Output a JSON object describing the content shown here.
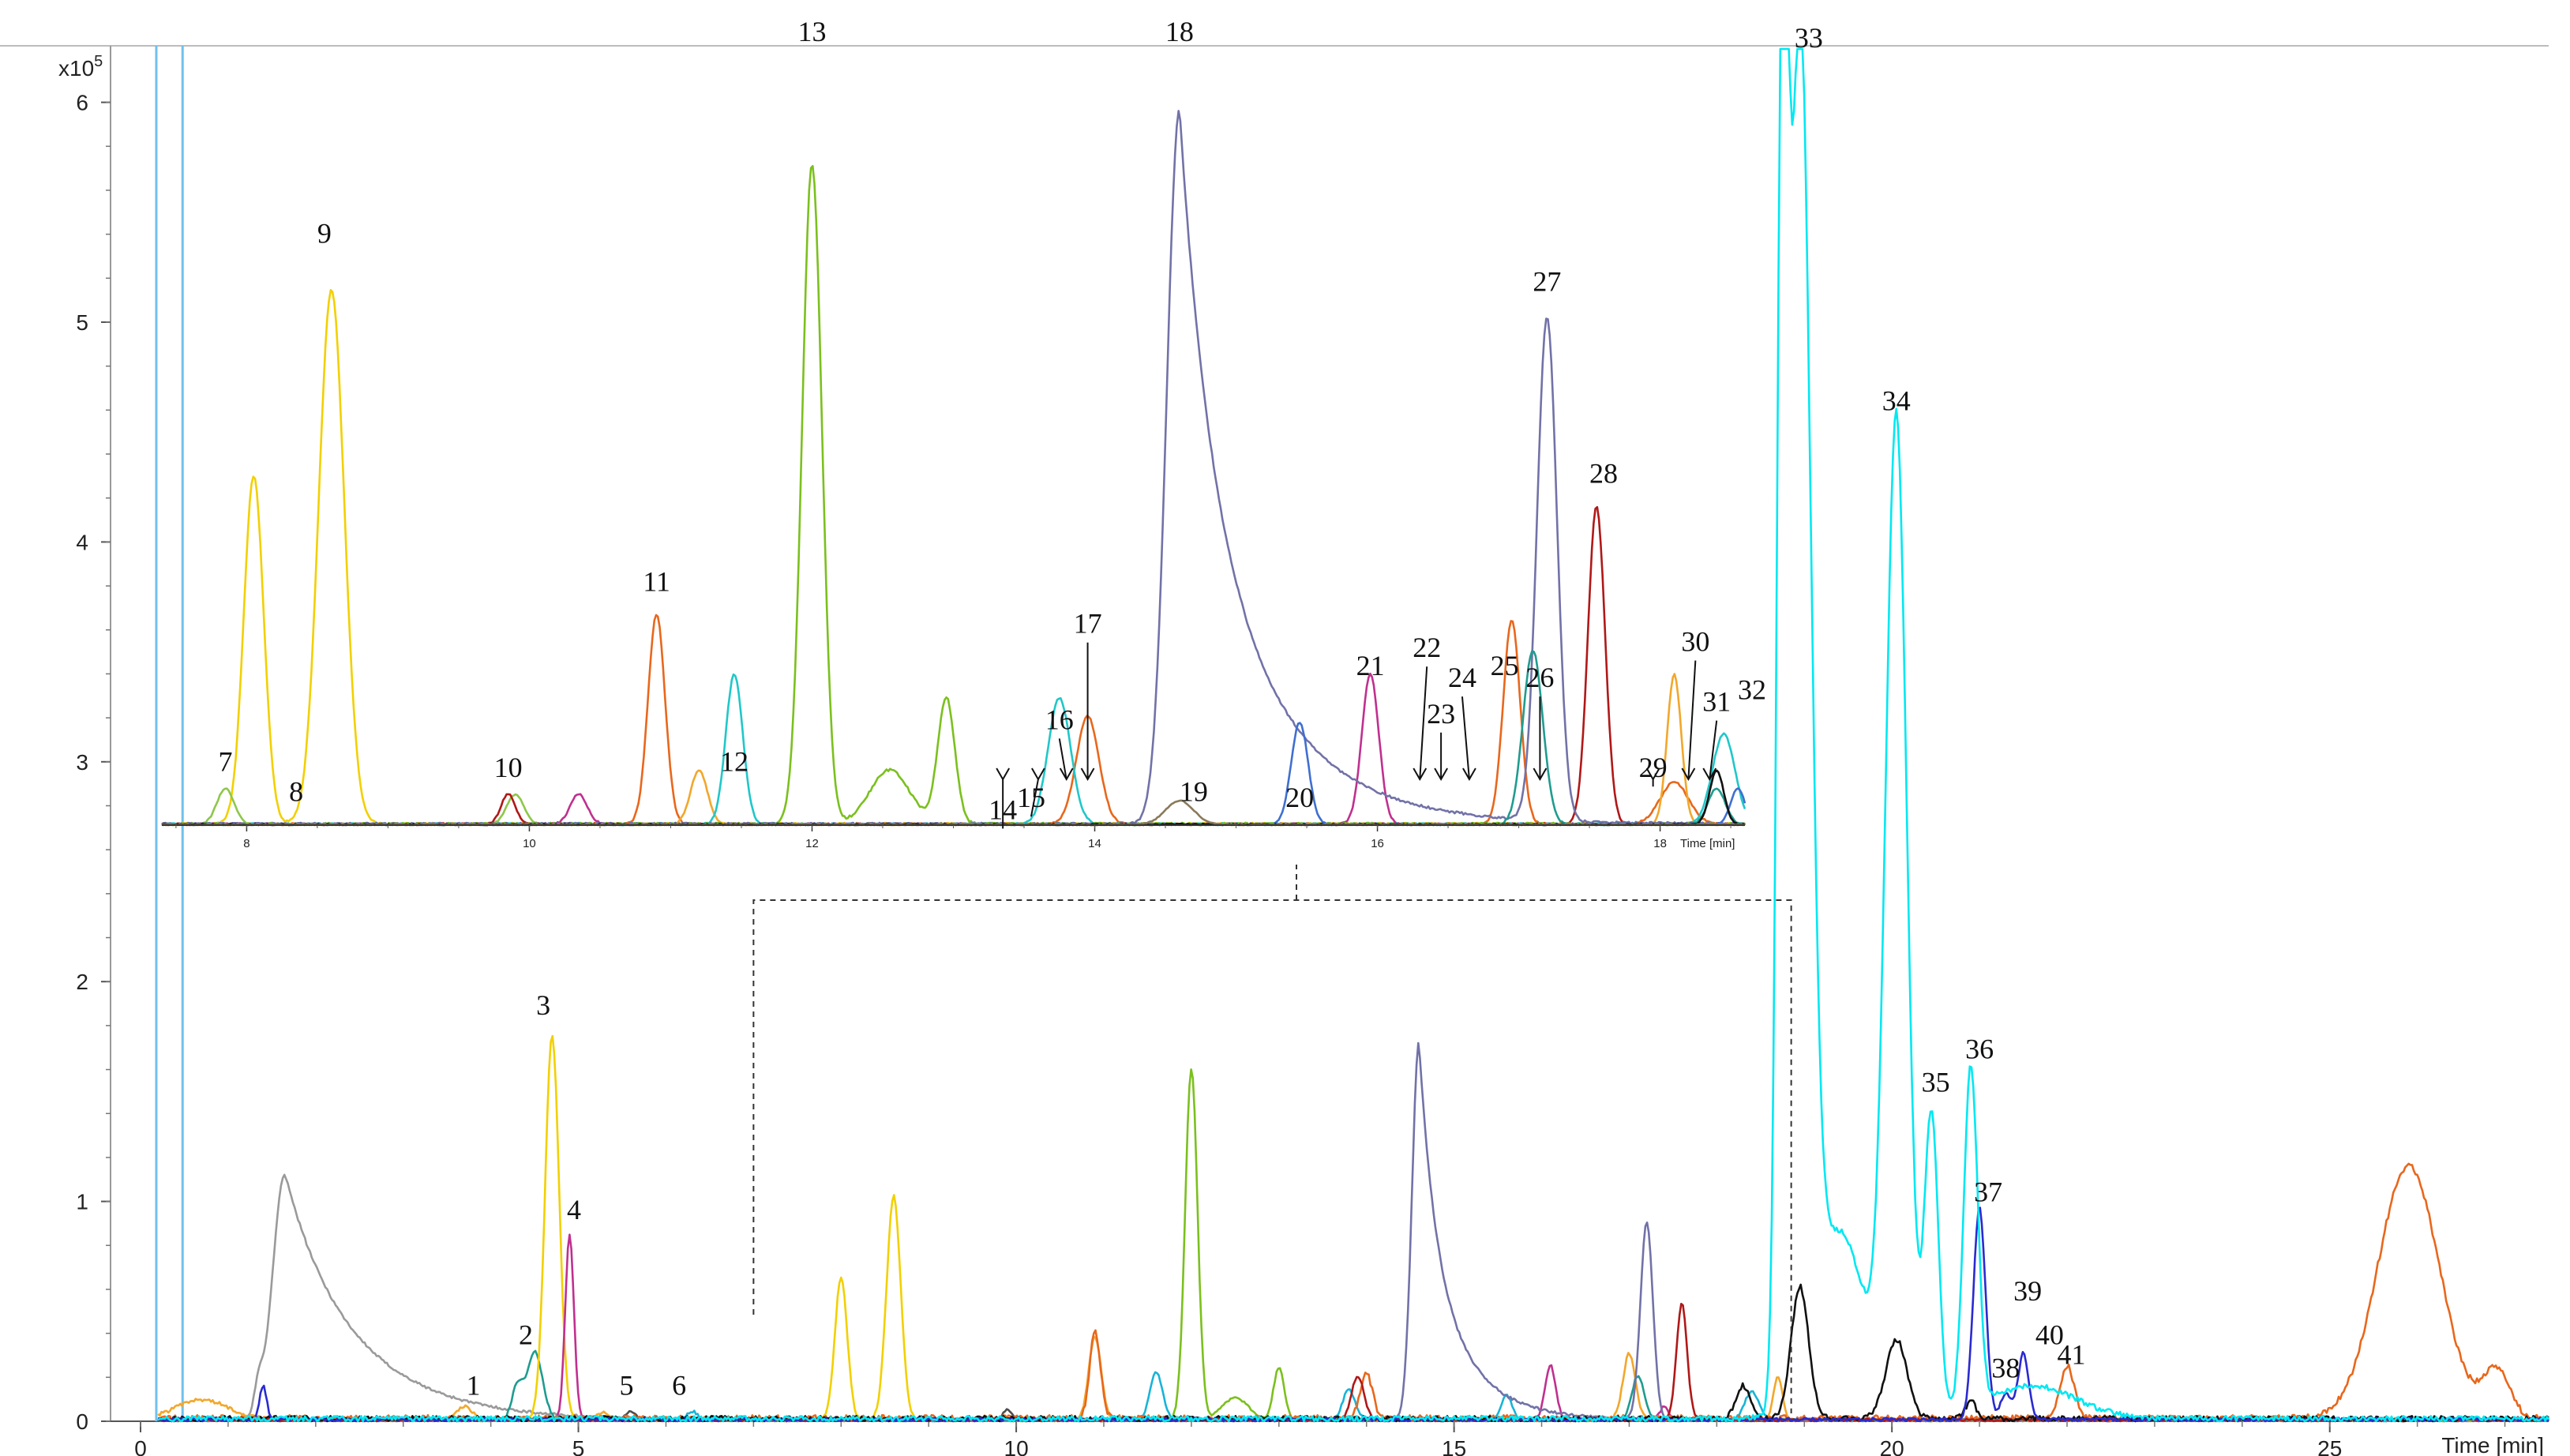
{
  "chart_data": {
    "type": "line",
    "description_free": true,
    "main": {
      "xlabel": "Time [min]",
      "y_scale_label": "x10",
      "y_scale_exponent": "5",
      "xlim": [
        0,
        27.5
      ],
      "ylim": [
        0,
        6.25
      ],
      "x_ticks": [
        0,
        5,
        10,
        15,
        20,
        25
      ],
      "y_ticks": [
        0,
        1,
        2,
        3,
        4,
        5,
        6
      ],
      "vlines_x": [
        0.18,
        0.48
      ],
      "series": [
        {
          "color": "#9a9a9a",
          "peaks": [
            {
              "x": 1.65,
              "h": 1.12,
              "w": 0.14,
              "tail": 0.9
            },
            {
              "x": 1.35,
              "h": 0.12,
              "w": 0.05
            }
          ],
          "noise": 0.006
        },
        {
          "color": "#f2a72b",
          "peaks": [
            {
              "x": 0.7,
              "h": 0.09,
              "w": 0.3
            },
            {
              "x": 3.7,
              "h": 0.06,
              "w": 0.08
            },
            {
              "x": 5.3,
              "h": 0.03,
              "w": 0.08
            },
            {
              "x": 10.9,
              "h": 0.38,
              "w": 0.07
            },
            {
              "x": 17.0,
              "h": 0.3,
              "w": 0.07
            },
            {
              "x": 18.7,
              "h": 0.2,
              "w": 0.05
            }
          ],
          "noise": 0.008
        },
        {
          "color": "#1f9c8f",
          "peaks": [
            {
              "x": 4.5,
              "h": 0.31,
              "w": 0.09
            },
            {
              "x": 4.3,
              "h": 0.15,
              "w": 0.06
            },
            {
              "x": 17.1,
              "h": 0.2,
              "w": 0.07
            }
          ],
          "noise": 0.006
        },
        {
          "color": "#f2d000",
          "peaks": [
            {
              "x": 4.7,
              "h": 1.75,
              "w": 0.08
            },
            {
              "x": 8.0,
              "h": 0.65,
              "w": 0.07
            },
            {
              "x": 8.6,
              "h": 1.02,
              "w": 0.08
            }
          ],
          "noise": 0.006
        },
        {
          "color": "#c0308f",
          "peaks": [
            {
              "x": 4.9,
              "h": 0.84,
              "w": 0.05
            },
            {
              "x": 16.1,
              "h": 0.25,
              "w": 0.06
            },
            {
              "x": 17.4,
              "h": 0.06,
              "w": 0.05
            }
          ],
          "noise": 0.006
        },
        {
          "color": "#4d4d4d",
          "peaks": [
            {
              "x": 5.6,
              "h": 0.04,
              "w": 0.06
            },
            {
              "x": 9.9,
              "h": 0.05,
              "w": 0.05
            }
          ],
          "noise": 0.004
        },
        {
          "color": "#18b4d8",
          "peaks": [
            {
              "x": 6.3,
              "h": 0.04,
              "w": 0.06
            },
            {
              "x": 11.6,
              "h": 0.22,
              "w": 0.07
            },
            {
              "x": 13.8,
              "h": 0.14,
              "w": 0.07
            },
            {
              "x": 15.6,
              "h": 0.11,
              "w": 0.06
            },
            {
              "x": 18.4,
              "h": 0.13,
              "w": 0.08
            }
          ],
          "noise": 0.006
        },
        {
          "color": "#7bc01e",
          "peaks": [
            {
              "x": 12.0,
              "h": 1.6,
              "w": 0.07
            },
            {
              "x": 13.0,
              "h": 0.24,
              "w": 0.06
            },
            {
              "x": 12.5,
              "h": 0.1,
              "w": 0.15
            }
          ],
          "noise": 0.006
        },
        {
          "color": "#e8671c",
          "peaks": [
            {
              "x": 10.9,
              "h": 0.4,
              "w": 0.06
            },
            {
              "x": 14.0,
              "h": 0.2,
              "w": 0.07
            },
            {
              "x": 25.9,
              "h": 1.15,
              "w": 0.35
            },
            {
              "x": 26.9,
              "h": 0.22,
              "w": 0.15
            },
            {
              "x": 22.0,
              "h": 0.24,
              "w": 0.08
            }
          ],
          "noise": 0.014
        },
        {
          "color": "#7272a8",
          "peaks": [
            {
              "x": 14.6,
              "h": 1.72,
              "w": 0.08,
              "tail": 0.5
            },
            {
              "x": 17.2,
              "h": 0.9,
              "w": 0.07
            }
          ],
          "noise": 0.006
        },
        {
          "color": "#b01818",
          "peaks": [
            {
              "x": 17.6,
              "h": 0.53,
              "w": 0.06
            },
            {
              "x": 13.9,
              "h": 0.2,
              "w": 0.07
            }
          ],
          "noise": 0.006
        },
        {
          "color": "#111111",
          "peaks": [
            {
              "x": 18.95,
              "h": 0.6,
              "w": 0.1
            },
            {
              "x": 20.05,
              "h": 0.36,
              "w": 0.12
            },
            {
              "x": 18.3,
              "h": 0.15,
              "w": 0.08
            },
            {
              "x": 20.9,
              "h": 0.08,
              "w": 0.06
            }
          ],
          "noise": 0.012
        },
        {
          "color": "#2a2ad0",
          "peaks": [
            {
              "x": 21.0,
              "h": 0.96,
              "w": 0.07
            },
            {
              "x": 21.5,
              "h": 0.3,
              "w": 0.06
            },
            {
              "x": 21.3,
              "h": 0.12,
              "w": 0.06
            },
            {
              "x": 1.4,
              "h": 0.15,
              "w": 0.04
            }
          ],
          "noise": 0.008
        },
        {
          "color": "#00e8f2",
          "peaks": [
            {
              "x": 18.95,
              "h": 6.15,
              "w": 0.12
            },
            {
              "x": 18.75,
              "h": 5.8,
              "w": 0.06
            },
            {
              "x": 20.05,
              "h": 4.5,
              "w": 0.12
            },
            {
              "x": 19.4,
              "h": 0.85,
              "w": 0.3
            },
            {
              "x": 20.45,
              "h": 1.38,
              "w": 0.08
            },
            {
              "x": 20.9,
              "h": 1.55,
              "w": 0.08
            },
            {
              "x": 21.6,
              "h": 0.15,
              "w": 0.5
            }
          ],
          "noise": 0.012
        }
      ],
      "labels": [
        {
          "text": "1",
          "x": 3.8,
          "y": 0.12
        },
        {
          "text": "2",
          "x": 4.4,
          "y": 0.35
        },
        {
          "text": "3",
          "x": 4.6,
          "y": 1.85
        },
        {
          "text": "4",
          "x": 4.95,
          "y": 0.92
        },
        {
          "text": "5",
          "x": 5.55,
          "y": 0.12
        },
        {
          "text": "6",
          "x": 6.15,
          "y": 0.12
        },
        {
          "text": "33",
          "x": 19.05,
          "y": 6.25
        },
        {
          "text": "34",
          "x": 20.05,
          "y": 4.6
        },
        {
          "text": "35",
          "x": 20.5,
          "y": 1.5
        },
        {
          "text": "36",
          "x": 21.0,
          "y": 1.65
        },
        {
          "text": "37",
          "x": 21.1,
          "y": 1.0
        },
        {
          "text": "38",
          "x": 21.3,
          "y": 0.2
        },
        {
          "text": "39",
          "x": 21.55,
          "y": 0.55
        },
        {
          "text": "40",
          "x": 21.8,
          "y": 0.35
        },
        {
          "text": "41",
          "x": 22.05,
          "y": 0.26
        }
      ]
    },
    "inset": {
      "xlabel": "Time [min]",
      "xlim": [
        7.4,
        18.6
      ],
      "ylim": [
        0,
        6.15
      ],
      "x_ticks": [
        8,
        10,
        12,
        14,
        16,
        18
      ],
      "series": [
        {
          "color": "#f2d000",
          "peaks": [
            {
              "x": 8.05,
              "h": 2.9,
              "w": 0.07
            },
            {
              "x": 8.6,
              "h": 4.45,
              "w": 0.09
            }
          ],
          "noise": 0.01
        },
        {
          "color": "#8fc74a",
          "peaks": [
            {
              "x": 7.85,
              "h": 0.3,
              "w": 0.06
            },
            {
              "x": 9.9,
              "h": 0.25,
              "w": 0.06
            }
          ],
          "noise": 0.006
        },
        {
          "color": "#b01818",
          "peaks": [
            {
              "x": 9.85,
              "h": 0.25,
              "w": 0.05
            },
            {
              "x": 17.55,
              "h": 2.65,
              "w": 0.06
            }
          ],
          "noise": 0.008
        },
        {
          "color": "#c0308f",
          "peaks": [
            {
              "x": 10.35,
              "h": 0.25,
              "w": 0.06
            },
            {
              "x": 15.95,
              "h": 1.25,
              "w": 0.06
            }
          ],
          "noise": 0.008
        },
        {
          "color": "#e8671c",
          "peaks": [
            {
              "x": 10.9,
              "h": 1.75,
              "w": 0.06
            },
            {
              "x": 13.95,
              "h": 0.9,
              "w": 0.08
            },
            {
              "x": 16.95,
              "h": 1.7,
              "w": 0.06
            },
            {
              "x": 18.1,
              "h": 0.35,
              "w": 0.1
            }
          ],
          "noise": 0.008
        },
        {
          "color": "#f2a72b",
          "peaks": [
            {
              "x": 11.2,
              "h": 0.45,
              "w": 0.06
            },
            {
              "x": 18.1,
              "h": 1.25,
              "w": 0.05
            }
          ],
          "noise": 0.006
        },
        {
          "color": "#20c7c9",
          "peaks": [
            {
              "x": 11.45,
              "h": 1.25,
              "w": 0.06
            },
            {
              "x": 13.75,
              "h": 1.05,
              "w": 0.08
            },
            {
              "x": 18.45,
              "h": 0.75,
              "w": 0.08
            }
          ],
          "noise": 0.008
        },
        {
          "color": "#7bc01e",
          "peaks": [
            {
              "x": 12.0,
              "h": 5.5,
              "w": 0.07
            },
            {
              "x": 12.55,
              "h": 0.45,
              "w": 0.14
            },
            {
              "x": 12.95,
              "h": 1.05,
              "w": 0.06
            }
          ],
          "noise": 0.01
        },
        {
          "color": "#7272a8",
          "peaks": [
            {
              "x": 14.6,
              "h": 5.95,
              "w": 0.09,
              "tail": 0.6
            },
            {
              "x": 17.2,
              "h": 4.2,
              "w": 0.07
            }
          ],
          "noise": 0.01
        },
        {
          "color": "#3f6fd0",
          "peaks": [
            {
              "x": 15.45,
              "h": 0.85,
              "w": 0.06
            },
            {
              "x": 18.55,
              "h": 0.3,
              "w": 0.05
            }
          ],
          "noise": 0.006
        },
        {
          "color": "#1f9c8f",
          "peaks": [
            {
              "x": 17.1,
              "h": 1.45,
              "w": 0.07
            },
            {
              "x": 18.4,
              "h": 0.3,
              "w": 0.06
            }
          ],
          "noise": 0.006
        },
        {
          "color": "#111111",
          "peaks": [
            {
              "x": 18.4,
              "h": 0.45,
              "w": 0.05
            },
            {
              "x": 18.85,
              "h": 0.6,
              "w": 0.04
            }
          ],
          "noise": 0.006
        },
        {
          "color": "#8a7a5a",
          "peaks": [
            {
              "x": 14.6,
              "h": 0.2,
              "w": 0.1
            }
          ],
          "noise": 0.004
        }
      ],
      "labels": [
        {
          "text": "7",
          "x": 7.85,
          "y": 0.45
        },
        {
          "text": "8",
          "x": 8.35,
          "y": 0.2
        },
        {
          "text": "9",
          "x": 8.55,
          "y": 4.85
        },
        {
          "text": "10",
          "x": 9.85,
          "y": 0.4
        },
        {
          "text": "11",
          "x": 10.9,
          "y": 1.95
        },
        {
          "text": "12",
          "x": 11.45,
          "y": 0.45
        },
        {
          "text": "13",
          "x": 12.0,
          "y": 6.55
        },
        {
          "text": "14",
          "x": 13.35,
          "y": 0.05
        },
        {
          "text": "15",
          "x": 13.55,
          "y": 0.15
        },
        {
          "text": "16",
          "x": 13.75,
          "y": 0.8
        },
        {
          "text": "17",
          "x": 13.95,
          "y": 1.6
        },
        {
          "text": "18",
          "x": 14.6,
          "y": 7.0
        },
        {
          "text": "19",
          "x": 14.7,
          "y": 0.2
        },
        {
          "text": "20",
          "x": 15.45,
          "y": 0.15
        },
        {
          "text": "21",
          "x": 15.95,
          "y": 1.25
        },
        {
          "text": "22",
          "x": 16.35,
          "y": 1.4
        },
        {
          "text": "23",
          "x": 16.45,
          "y": 0.85
        },
        {
          "text": "24",
          "x": 16.6,
          "y": 1.15
        },
        {
          "text": "25",
          "x": 16.9,
          "y": 1.25
        },
        {
          "text": "26",
          "x": 17.15,
          "y": 1.15
        },
        {
          "text": "27",
          "x": 17.2,
          "y": 4.45
        },
        {
          "text": "28",
          "x": 17.6,
          "y": 2.85
        },
        {
          "text": "29",
          "x": 17.95,
          "y": 0.4
        },
        {
          "text": "30",
          "x": 18.25,
          "y": 1.45
        },
        {
          "text": "31",
          "x": 18.4,
          "y": 0.95
        },
        {
          "text": "32",
          "x": 18.65,
          "y": 1.05
        }
      ],
      "arrows": [
        {
          "label_x": 13.35,
          "x": 13.35
        },
        {
          "label_x": 13.55,
          "x": 13.6
        },
        {
          "label_x": 13.75,
          "x": 13.8
        },
        {
          "label_x": 13.95,
          "x": 13.95
        },
        {
          "label_x": 16.35,
          "x": 16.3
        },
        {
          "label_x": 16.45,
          "x": 16.45
        },
        {
          "label_x": 16.6,
          "x": 16.65
        },
        {
          "label_x": 17.15,
          "x": 17.15
        },
        {
          "label_x": 17.95,
          "x": 17.95
        },
        {
          "label_x": 18.25,
          "x": 18.2
        },
        {
          "label_x": 18.4,
          "x": 18.35
        }
      ]
    }
  }
}
